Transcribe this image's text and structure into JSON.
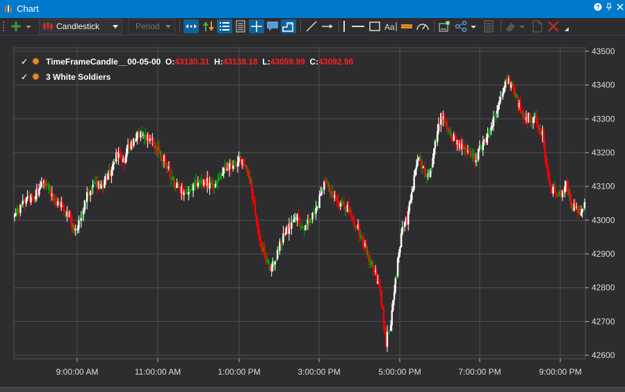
{
  "window": {
    "title": "Chart"
  },
  "toolbar": {
    "chart_type": "Candlestick",
    "period_placeholder": "Period"
  },
  "legend": [
    {
      "name": "TimeFrameCandle__00-05-00",
      "o_label": "O:",
      "o": "43130.31",
      "h_label": "H:",
      "h": "43138.18",
      "l_label": "L:",
      "l": "43059.99",
      "c_label": "C:",
      "c": "43092.96"
    },
    {
      "name": "3 White Soldiers"
    }
  ],
  "colors": {
    "background": "#2d2d30",
    "grid": "#505050",
    "bull": "#ffffff",
    "bear": "#ff0000",
    "neutral": "#00aa00",
    "accent": "#007acc"
  },
  "chart_data": {
    "type": "candlestick",
    "x_ticks": [
      "9:00:00 AM",
      "11:00:00 AM",
      "1:00:00 PM",
      "3:00:00 PM",
      "5:00:00 PM",
      "7:00:00 PM",
      "9:00:00 PM"
    ],
    "y_ticks": [
      "43500",
      "43400",
      "43300",
      "43200",
      "43100",
      "43000",
      "42900",
      "42800",
      "42700",
      "42600"
    ],
    "ylim": [
      42590,
      43510
    ],
    "grid": true,
    "close_path": [
      [
        0,
        43010
      ],
      [
        8,
        43050
      ],
      [
        18,
        43080
      ],
      [
        25,
        43110
      ],
      [
        32,
        43070
      ],
      [
        40,
        43040
      ],
      [
        47,
        43010
      ],
      [
        51,
        42960
      ],
      [
        58,
        43020
      ],
      [
        62,
        43070
      ],
      [
        68,
        43100
      ],
      [
        76,
        43110
      ],
      [
        82,
        43140
      ],
      [
        88,
        43200
      ],
      [
        93,
        43170
      ],
      [
        98,
        43220
      ],
      [
        105,
        43250
      ],
      [
        110,
        43260
      ],
      [
        118,
        43230
      ],
      [
        128,
        43180
      ],
      [
        135,
        43120
      ],
      [
        142,
        43090
      ],
      [
        150,
        43080
      ],
      [
        158,
        43120
      ],
      [
        165,
        43110
      ],
      [
        172,
        43100
      ],
      [
        180,
        43150
      ],
      [
        188,
        43170
      ],
      [
        195,
        43180
      ],
      [
        200,
        43150
      ],
      [
        205,
        43050
      ],
      [
        210,
        42950
      ],
      [
        215,
        42880
      ],
      [
        220,
        42860
      ],
      [
        225,
        42900
      ],
      [
        230,
        42960
      ],
      [
        236,
        42980
      ],
      [
        242,
        43010
      ],
      [
        248,
        42970
      ],
      [
        254,
        43000
      ],
      [
        260,
        43050
      ],
      [
        266,
        43110
      ],
      [
        272,
        43080
      ],
      [
        278,
        43050
      ],
      [
        284,
        43040
      ],
      [
        290,
        43000
      ],
      [
        296,
        42960
      ],
      [
        302,
        42900
      ],
      [
        308,
        42850
      ],
      [
        313,
        42780
      ],
      [
        318,
        42640
      ],
      [
        322,
        42700
      ],
      [
        326,
        42820
      ],
      [
        331,
        42960
      ],
      [
        336,
        43000
      ],
      [
        341,
        43100
      ],
      [
        346,
        43200
      ],
      [
        350,
        43150
      ],
      [
        355,
        43130
      ],
      [
        360,
        43220
      ],
      [
        365,
        43310
      ],
      [
        370,
        43270
      ],
      [
        376,
        43240
      ],
      [
        382,
        43220
      ],
      [
        388,
        43200
      ],
      [
        394,
        43180
      ],
      [
        400,
        43220
      ],
      [
        406,
        43250
      ],
      [
        411,
        43310
      ],
      [
        415,
        43360
      ],
      [
        419,
        43400
      ],
      [
        423,
        43410
      ],
      [
        427,
        43380
      ],
      [
        432,
        43340
      ],
      [
        437,
        43310
      ],
      [
        442,
        43300
      ],
      [
        447,
        43290
      ],
      [
        452,
        43250
      ],
      [
        456,
        43150
      ],
      [
        460,
        43090
      ],
      [
        464,
        43080
      ],
      [
        468,
        43070
      ],
      [
        472,
        43100
      ],
      [
        476,
        43050
      ],
      [
        480,
        43030
      ],
      [
        484,
        43020
      ],
      [
        488,
        43040
      ]
    ]
  }
}
